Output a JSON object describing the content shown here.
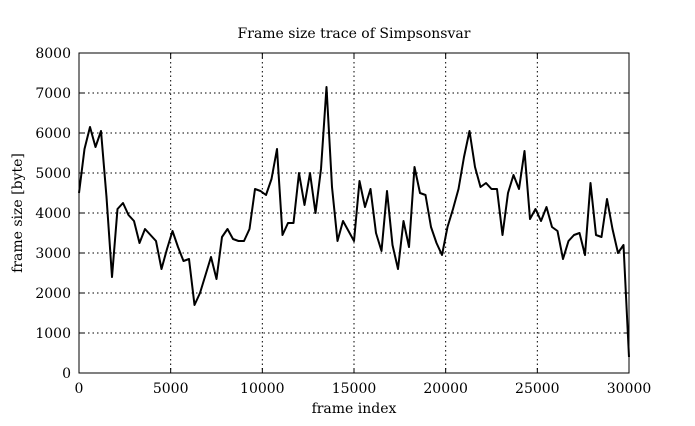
{
  "chart_data": {
    "type": "line",
    "title": "Frame size trace of Simpsonsvar",
    "xlabel": "frame index",
    "ylabel": "frame size [byte]",
    "xlim": [
      0,
      30000
    ],
    "ylim": [
      0,
      8000
    ],
    "xticks": [
      0,
      5000,
      10000,
      15000,
      20000,
      25000,
      30000
    ],
    "yticks": [
      0,
      1000,
      2000,
      3000,
      4000,
      5000,
      6000,
      7000,
      8000
    ],
    "grid": true,
    "series": [
      {
        "x": [
          0,
          300,
          600,
          900,
          1200,
          1500,
          1800,
          2100,
          2400,
          2700,
          3000,
          3300,
          3600,
          3900,
          4200,
          4500,
          4800,
          5100,
          5400,
          5700,
          6000,
          6300,
          6600,
          6900,
          7200,
          7500,
          7800,
          8100,
          8400,
          8700,
          9000,
          9300,
          9600,
          9900,
          10200,
          10500,
          10800,
          11100,
          11400,
          11700,
          12000,
          12300,
          12600,
          12900,
          13200,
          13500,
          13800,
          14100,
          14400,
          14700,
          15000,
          15300,
          15600,
          15900,
          16200,
          16500,
          16800,
          17100,
          17400,
          17700,
          18000,
          18300,
          18600,
          18900,
          19200,
          19500,
          19800,
          20100,
          20400,
          20700,
          21000,
          21300,
          21600,
          21900,
          22200,
          22500,
          22800,
          23100,
          23400,
          23700,
          24000,
          24300,
          24600,
          24900,
          25200,
          25500,
          25800,
          26100,
          26400,
          26700,
          27000,
          27300,
          27600,
          27900,
          28200,
          28500,
          28800,
          29100,
          29400,
          29700,
          30000
        ],
        "values": [
          4500,
          5600,
          6150,
          5650,
          6050,
          4400,
          2400,
          4100,
          4250,
          3950,
          3800,
          3250,
          3600,
          3450,
          3300,
          2600,
          3100,
          3550,
          3150,
          2800,
          2850,
          1700,
          2000,
          2450,
          2900,
          2350,
          3400,
          3600,
          3350,
          3300,
          3300,
          3600,
          4600,
          4550,
          4450,
          4850,
          5600,
          3450,
          3750,
          3750,
          5000,
          4200,
          5000,
          4000,
          5100,
          7150,
          4650,
          3300,
          3800,
          3550,
          3300,
          4800,
          4150,
          4600,
          3500,
          3050,
          4550,
          3200,
          2600,
          3800,
          3150,
          5150,
          4500,
          4450,
          3650,
          3250,
          2950,
          3650,
          4100,
          4600,
          5400,
          6050,
          5150,
          4650,
          4750,
          4600,
          4600,
          3450,
          4500,
          4950,
          4600,
          5550,
          3850,
          4100,
          3800,
          4150,
          3650,
          3550,
          2850,
          3300,
          3450,
          3500,
          2950,
          4750,
          3450,
          3400,
          4350,
          3600,
          3000,
          3200,
          400
        ]
      }
    ]
  }
}
